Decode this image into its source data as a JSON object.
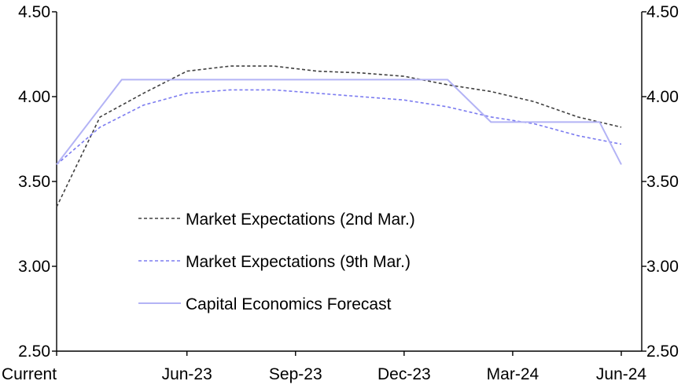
{
  "chart_data": {
    "type": "line",
    "title": "",
    "xlabel": "",
    "ylabel": "",
    "ylim": [
      2.5,
      4.5
    ],
    "y_ticks": [
      "2.50",
      "3.00",
      "3.50",
      "4.00",
      "4.50"
    ],
    "y_tick_values": [
      2.5,
      3.0,
      3.5,
      4.0,
      4.5
    ],
    "x_range": [
      0,
      13
    ],
    "x_ticks": [
      {
        "label": "Current",
        "x": 0
      },
      {
        "label": "Jun-23",
        "x": 3
      },
      {
        "label": "Sep-23",
        "x": 5.5
      },
      {
        "label": "Dec-23",
        "x": 8
      },
      {
        "label": "Mar-24",
        "x": 10.5
      },
      {
        "label": "Jun-24",
        "x": 13
      }
    ],
    "grid": false,
    "legend_position": "center-left",
    "series": [
      {
        "name": "Market Expectations (2nd Mar.)",
        "color": "#404040",
        "dash": "dashed",
        "points": [
          [
            0,
            3.35
          ],
          [
            1,
            3.88
          ],
          [
            2,
            4.02
          ],
          [
            3,
            4.15
          ],
          [
            4,
            4.18
          ],
          [
            5,
            4.18
          ],
          [
            6,
            4.15
          ],
          [
            7,
            4.14
          ],
          [
            8,
            4.12
          ],
          [
            9,
            4.07
          ],
          [
            10,
            4.03
          ],
          [
            11,
            3.97
          ],
          [
            12,
            3.88
          ],
          [
            13,
            3.82
          ]
        ]
      },
      {
        "name": "Market Expectations (9th Mar.)",
        "color": "#7b7bf0",
        "dash": "dashed",
        "points": [
          [
            0,
            3.6
          ],
          [
            1,
            3.82
          ],
          [
            2,
            3.95
          ],
          [
            3,
            4.02
          ],
          [
            4,
            4.04
          ],
          [
            5,
            4.04
          ],
          [
            6,
            4.02
          ],
          [
            7,
            4.0
          ],
          [
            8,
            3.98
          ],
          [
            9,
            3.94
          ],
          [
            10,
            3.88
          ],
          [
            11,
            3.84
          ],
          [
            12,
            3.77
          ],
          [
            13,
            3.72
          ]
        ]
      },
      {
        "name": "Capital Economics Forecast",
        "color": "#b3b3f5",
        "dash": "solid",
        "points": [
          [
            0,
            3.6
          ],
          [
            1.5,
            4.1
          ],
          [
            3,
            4.1
          ],
          [
            4.5,
            4.1
          ],
          [
            6,
            4.1
          ],
          [
            7.5,
            4.1
          ],
          [
            9,
            4.1
          ],
          [
            10,
            3.85
          ],
          [
            11,
            3.85
          ],
          [
            12.5,
            3.85
          ],
          [
            13,
            3.6
          ]
        ]
      }
    ]
  }
}
